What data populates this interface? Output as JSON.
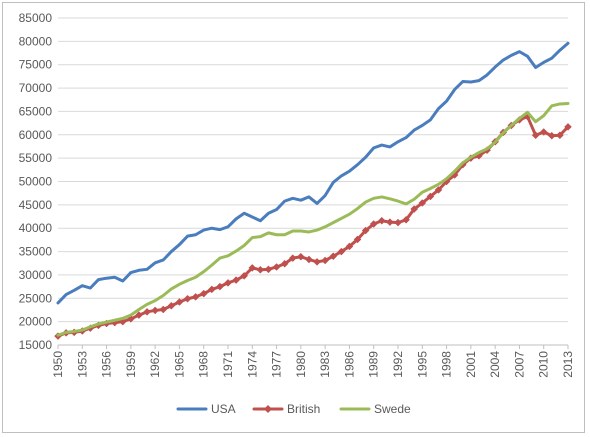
{
  "chart_data": {
    "type": "line",
    "title": "",
    "xlabel": "",
    "ylabel": "",
    "x": [
      1950,
      1951,
      1952,
      1953,
      1954,
      1955,
      1956,
      1957,
      1958,
      1959,
      1960,
      1961,
      1962,
      1963,
      1964,
      1965,
      1966,
      1967,
      1968,
      1969,
      1970,
      1971,
      1972,
      1973,
      1974,
      1975,
      1976,
      1977,
      1978,
      1979,
      1980,
      1981,
      1982,
      1983,
      1984,
      1985,
      1986,
      1987,
      1988,
      1989,
      1990,
      1991,
      1992,
      1993,
      1994,
      1995,
      1996,
      1997,
      1998,
      1999,
      2000,
      2001,
      2002,
      2003,
      2004,
      2005,
      2006,
      2007,
      2008,
      2009,
      2010,
      2011,
      2012,
      2013
    ],
    "x_tick_labels": [
      "1950",
      "1953",
      "1956",
      "1959",
      "1962",
      "1965",
      "1968",
      "1971",
      "1974",
      "1977",
      "1980",
      "1983",
      "1986",
      "1989",
      "1992",
      "1995",
      "1998",
      "2001",
      "2004",
      "2007",
      "2010",
      "2013"
    ],
    "ylim": [
      15000,
      85000
    ],
    "y_ticks": [
      15000,
      20000,
      25000,
      30000,
      35000,
      40000,
      45000,
      50000,
      55000,
      60000,
      65000,
      70000,
      75000,
      80000,
      85000
    ],
    "grid": "horizontal",
    "legend_position": "bottom",
    "series": [
      {
        "name": "USA",
        "color": "#4a7dbe",
        "marker": "none",
        "values": [
          24000,
          25800,
          26700,
          27700,
          27200,
          29000,
          29300,
          29500,
          28700,
          30500,
          31000,
          31200,
          32600,
          33200,
          35000,
          36500,
          38300,
          38600,
          39600,
          40000,
          39700,
          40300,
          42000,
          43200,
          42400,
          41600,
          43200,
          44000,
          45800,
          46400,
          46000,
          46700,
          45300,
          47000,
          49800,
          51200,
          52200,
          53600,
          55200,
          57200,
          57800,
          57400,
          58500,
          59400,
          61000,
          62000,
          63200,
          65600,
          67200,
          69700,
          71400,
          71300,
          71600,
          72800,
          74500,
          76000,
          77000,
          77800,
          76800,
          74400,
          75500,
          76400,
          78100,
          79600
        ]
      },
      {
        "name": "British",
        "color": "#c0504d",
        "marker": "diamond",
        "values": [
          16900,
          17600,
          17700,
          18000,
          18600,
          19200,
          19600,
          19800,
          20000,
          20600,
          21400,
          22100,
          22400,
          22600,
          23400,
          24200,
          24900,
          25300,
          26000,
          26900,
          27500,
          28300,
          28900,
          29800,
          31500,
          31100,
          31200,
          31700,
          32400,
          33600,
          33900,
          33300,
          32800,
          33100,
          34000,
          35000,
          36100,
          37600,
          39500,
          40900,
          41600,
          41300,
          41200,
          41800,
          44100,
          45400,
          46800,
          48200,
          50000,
          51400,
          53600,
          55000,
          55500,
          56700,
          58500,
          60500,
          62000,
          63200,
          63900,
          59900,
          60600,
          59800,
          59900,
          61700
        ]
      },
      {
        "name": "Swede",
        "color": "#9bbb59",
        "marker": "none",
        "values": [
          17100,
          17700,
          17900,
          18200,
          18900,
          19500,
          19900,
          20300,
          20700,
          21400,
          22600,
          23700,
          24500,
          25600,
          27000,
          28000,
          28800,
          29500,
          30700,
          32100,
          33600,
          34100,
          35100,
          36300,
          38000,
          38200,
          39000,
          38600,
          38600,
          39400,
          39400,
          39200,
          39600,
          40300,
          41200,
          42100,
          43000,
          44200,
          45600,
          46400,
          46700,
          46300,
          45800,
          45200,
          46200,
          47700,
          48500,
          49400,
          50600,
          52200,
          54000,
          55200,
          56200,
          57000,
          58400,
          60400,
          62000,
          63500,
          64800,
          62800,
          64100,
          66200,
          66600,
          66700
        ]
      }
    ]
  }
}
